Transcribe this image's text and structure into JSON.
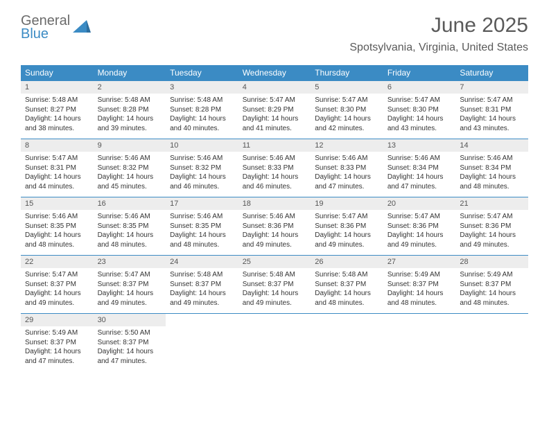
{
  "brand": {
    "text1": "General",
    "text2": "Blue",
    "color1": "#6b6b6b",
    "color2": "#3b8bc4"
  },
  "title": "June 2025",
  "location": "Spotsylvania, Virginia, United States",
  "header_bg": "#3b8bc4",
  "header_fg": "#ffffff",
  "daynum_bg": "#ededed",
  "row_border": "#3b8bc4",
  "weekdays": [
    "Sunday",
    "Monday",
    "Tuesday",
    "Wednesday",
    "Thursday",
    "Friday",
    "Saturday"
  ],
  "days": {
    "1": {
      "sunrise": "5:48 AM",
      "sunset": "8:27 PM",
      "daylight": "14 hours and 38 minutes."
    },
    "2": {
      "sunrise": "5:48 AM",
      "sunset": "8:28 PM",
      "daylight": "14 hours and 39 minutes."
    },
    "3": {
      "sunrise": "5:48 AM",
      "sunset": "8:28 PM",
      "daylight": "14 hours and 40 minutes."
    },
    "4": {
      "sunrise": "5:47 AM",
      "sunset": "8:29 PM",
      "daylight": "14 hours and 41 minutes."
    },
    "5": {
      "sunrise": "5:47 AM",
      "sunset": "8:30 PM",
      "daylight": "14 hours and 42 minutes."
    },
    "6": {
      "sunrise": "5:47 AM",
      "sunset": "8:30 PM",
      "daylight": "14 hours and 43 minutes."
    },
    "7": {
      "sunrise": "5:47 AM",
      "sunset": "8:31 PM",
      "daylight": "14 hours and 43 minutes."
    },
    "8": {
      "sunrise": "5:47 AM",
      "sunset": "8:31 PM",
      "daylight": "14 hours and 44 minutes."
    },
    "9": {
      "sunrise": "5:46 AM",
      "sunset": "8:32 PM",
      "daylight": "14 hours and 45 minutes."
    },
    "10": {
      "sunrise": "5:46 AM",
      "sunset": "8:32 PM",
      "daylight": "14 hours and 46 minutes."
    },
    "11": {
      "sunrise": "5:46 AM",
      "sunset": "8:33 PM",
      "daylight": "14 hours and 46 minutes."
    },
    "12": {
      "sunrise": "5:46 AM",
      "sunset": "8:33 PM",
      "daylight": "14 hours and 47 minutes."
    },
    "13": {
      "sunrise": "5:46 AM",
      "sunset": "8:34 PM",
      "daylight": "14 hours and 47 minutes."
    },
    "14": {
      "sunrise": "5:46 AM",
      "sunset": "8:34 PM",
      "daylight": "14 hours and 48 minutes."
    },
    "15": {
      "sunrise": "5:46 AM",
      "sunset": "8:35 PM",
      "daylight": "14 hours and 48 minutes."
    },
    "16": {
      "sunrise": "5:46 AM",
      "sunset": "8:35 PM",
      "daylight": "14 hours and 48 minutes."
    },
    "17": {
      "sunrise": "5:46 AM",
      "sunset": "8:35 PM",
      "daylight": "14 hours and 48 minutes."
    },
    "18": {
      "sunrise": "5:46 AM",
      "sunset": "8:36 PM",
      "daylight": "14 hours and 49 minutes."
    },
    "19": {
      "sunrise": "5:47 AM",
      "sunset": "8:36 PM",
      "daylight": "14 hours and 49 minutes."
    },
    "20": {
      "sunrise": "5:47 AM",
      "sunset": "8:36 PM",
      "daylight": "14 hours and 49 minutes."
    },
    "21": {
      "sunrise": "5:47 AM",
      "sunset": "8:36 PM",
      "daylight": "14 hours and 49 minutes."
    },
    "22": {
      "sunrise": "5:47 AM",
      "sunset": "8:37 PM",
      "daylight": "14 hours and 49 minutes."
    },
    "23": {
      "sunrise": "5:47 AM",
      "sunset": "8:37 PM",
      "daylight": "14 hours and 49 minutes."
    },
    "24": {
      "sunrise": "5:48 AM",
      "sunset": "8:37 PM",
      "daylight": "14 hours and 49 minutes."
    },
    "25": {
      "sunrise": "5:48 AM",
      "sunset": "8:37 PM",
      "daylight": "14 hours and 49 minutes."
    },
    "26": {
      "sunrise": "5:48 AM",
      "sunset": "8:37 PM",
      "daylight": "14 hours and 48 minutes."
    },
    "27": {
      "sunrise": "5:49 AM",
      "sunset": "8:37 PM",
      "daylight": "14 hours and 48 minutes."
    },
    "28": {
      "sunrise": "5:49 AM",
      "sunset": "8:37 PM",
      "daylight": "14 hours and 48 minutes."
    },
    "29": {
      "sunrise": "5:49 AM",
      "sunset": "8:37 PM",
      "daylight": "14 hours and 47 minutes."
    },
    "30": {
      "sunrise": "5:50 AM",
      "sunset": "8:37 PM",
      "daylight": "14 hours and 47 minutes."
    }
  },
  "labels": {
    "sunrise": "Sunrise: ",
    "sunset": "Sunset: ",
    "daylight": "Daylight: "
  },
  "grid": [
    [
      1,
      2,
      3,
      4,
      5,
      6,
      7
    ],
    [
      8,
      9,
      10,
      11,
      12,
      13,
      14
    ],
    [
      15,
      16,
      17,
      18,
      19,
      20,
      21
    ],
    [
      22,
      23,
      24,
      25,
      26,
      27,
      28
    ],
    [
      29,
      30,
      null,
      null,
      null,
      null,
      null
    ]
  ]
}
